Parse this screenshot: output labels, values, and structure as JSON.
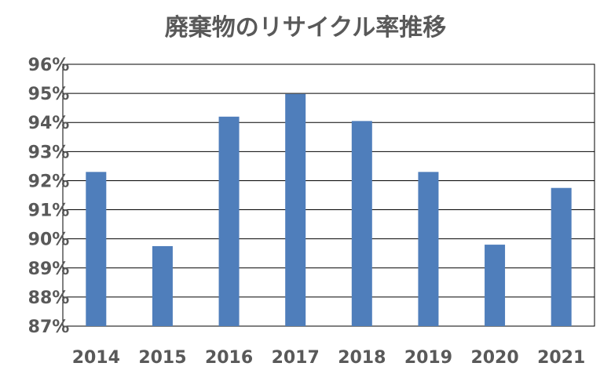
{
  "chart_data": {
    "type": "bar",
    "title": "廃棄物のリサイクル率推移",
    "xlabel": "",
    "ylabel": "",
    "categories": [
      "2014",
      "2015",
      "2016",
      "2017",
      "2018",
      "2019",
      "2020",
      "2021"
    ],
    "values": [
      92.3,
      89.75,
      94.2,
      94.98,
      94.05,
      92.3,
      89.8,
      91.75
    ],
    "ylim": [
      87,
      96
    ],
    "y_ticks": [
      87,
      88,
      89,
      90,
      91,
      92,
      93,
      94,
      95,
      96
    ],
    "y_tick_labels": [
      "87%",
      "88%",
      "89%",
      "90%",
      "91%",
      "92%",
      "93%",
      "94%",
      "95%",
      "96%"
    ],
    "grid": true,
    "legend": "none",
    "bar_color": "#4F7EBB",
    "grid_color": "#000000",
    "text_color": "#595959"
  }
}
